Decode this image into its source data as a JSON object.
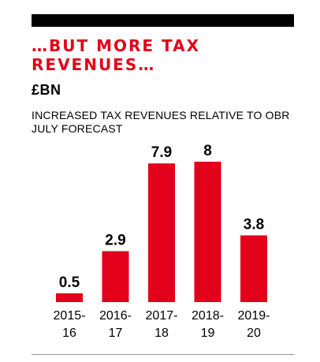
{
  "header": {
    "title": "…BUT MORE TAX REVENUES…",
    "unit": "£BN",
    "subtitle": "INCREASED TAX REVENUES RELATIVE TO OBR JULY FORECAST"
  },
  "colors": {
    "bar": "#e2001a",
    "title": "#e2001a",
    "text": "#000000",
    "top_rule": "#000000",
    "bottom_rule": "#9a9a9a"
  },
  "chart_data": {
    "type": "bar",
    "title": "…BUT MORE TAX REVENUES…",
    "subtitle": "INCREASED TAX REVENUES RELATIVE TO OBR JULY FORECAST",
    "ylabel": "£BN",
    "categories": [
      [
        "2015-",
        "16"
      ],
      [
        "2016-",
        "17"
      ],
      [
        "2017-",
        "18"
      ],
      [
        "2018-",
        "19"
      ],
      [
        "2019-",
        "20"
      ]
    ],
    "values": [
      0.5,
      2.9,
      7.9,
      8,
      3.8
    ],
    "value_labels": [
      "0.5",
      "2.9",
      "7.9",
      "8",
      "3.8"
    ],
    "ylim": [
      0,
      8
    ],
    "grid": false,
    "legend": "none"
  }
}
